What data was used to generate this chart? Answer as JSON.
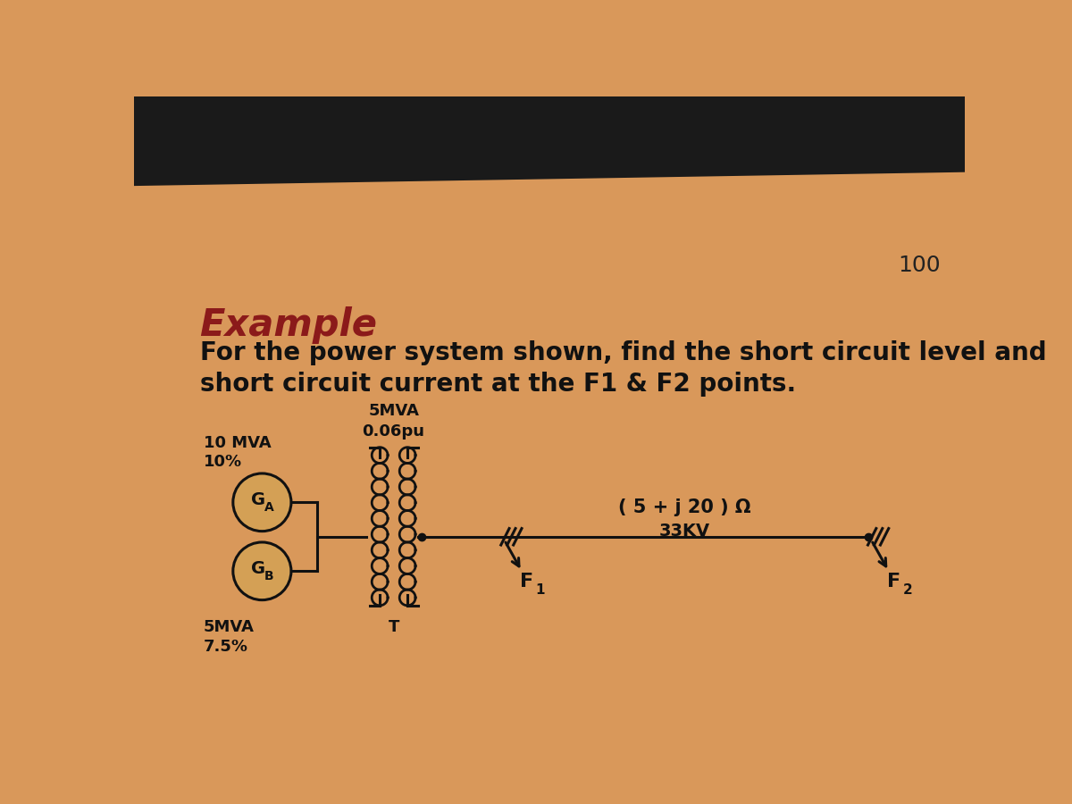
{
  "bg_color_center": "#E8B87A",
  "bg_color_edge": "#C07830",
  "top_bar_color": "#1a1a1a",
  "title_example": "Example",
  "title_example_color": "#8B1A1A",
  "title_example_size": 30,
  "subtitle_line1": "For the power system shown, find the short circuit level and",
  "subtitle_line2": "short circuit current at the F1 & F2 points.",
  "subtitle_color": "#111111",
  "subtitle_size": 20,
  "page_number": "100",
  "page_number_color": "#222222",
  "page_number_size": 18,
  "ga_rating": "10 MVA",
  "ga_percent": "10%",
  "gb_rating": "5MVA",
  "gb_percent": "7.5%",
  "transformer_rating": "5MVA",
  "transformer_pu": "0.06pu",
  "line_label": "( 5 + j 20 ) Ω",
  "voltage_label": "33KV",
  "t_label": "T",
  "diagram_color": "#111111",
  "circle_fill_color": "#D4A055"
}
